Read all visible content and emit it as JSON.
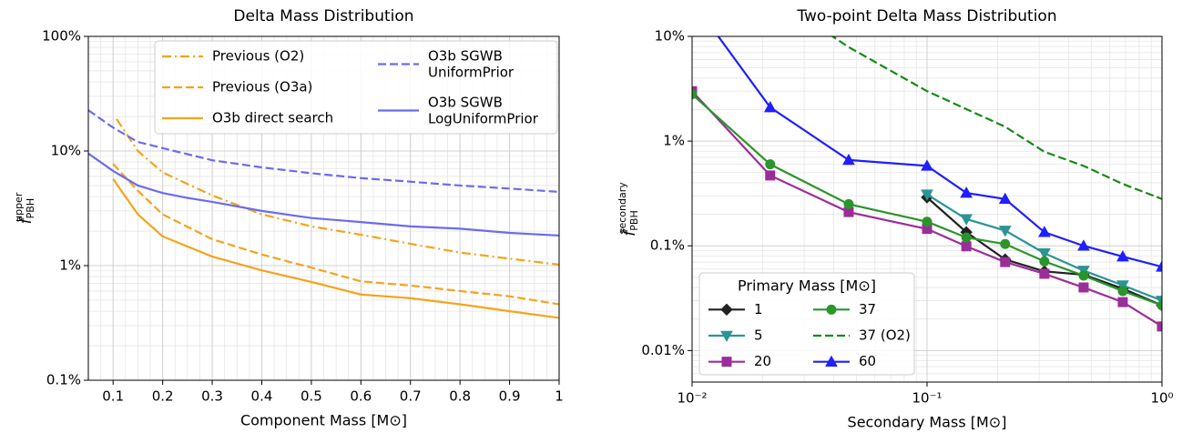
{
  "chart_data": [
    {
      "type": "line",
      "title": "Delta Mass Distribution",
      "x_label": "Component Mass [M⊙]",
      "y_label": {
        "symbol": "f̃",
        "sub": "PBH",
        "sup": "upper"
      },
      "xlim": [
        0.05,
        1.0
      ],
      "xticks": [
        0.1,
        0.2,
        0.3,
        0.4,
        0.5,
        0.6,
        0.7,
        0.8,
        0.9,
        1.0
      ],
      "xlog": false,
      "ylim": [
        0.1,
        100
      ],
      "yticks": [
        {
          "value": 0.1,
          "label": "0.1%"
        },
        {
          "value": 1,
          "label": "1%"
        },
        {
          "value": 10,
          "label": "10%"
        },
        {
          "value": 100,
          "label": "100%"
        }
      ],
      "ylog": true,
      "grid": true,
      "legend": "upper right",
      "series": [
        {
          "name": "Previous (O2)",
          "color": "#f5a31a",
          "linestyle": "dashdot",
          "x": [
            0.107,
            0.15,
            0.2,
            0.3,
            0.4,
            0.5,
            0.6,
            0.7,
            0.8,
            0.9,
            1.0
          ],
          "values": [
            19,
            10,
            6.5,
            4.1,
            2.8,
            2.2,
            1.86,
            1.55,
            1.3,
            1.15,
            1.02
          ]
        },
        {
          "name": "Previous (O3a)",
          "color": "#f5a31a",
          "linestyle": "dashed",
          "x": [
            0.1,
            0.15,
            0.2,
            0.3,
            0.4,
            0.5,
            0.6,
            0.7,
            0.8,
            0.9,
            1.0
          ],
          "values": [
            7.7,
            4.5,
            2.8,
            1.7,
            1.25,
            0.96,
            0.73,
            0.67,
            0.6,
            0.54,
            0.46
          ]
        },
        {
          "name": "O3b direct search",
          "color": "#f5a31a",
          "linestyle": "solid",
          "x": [
            0.1,
            0.15,
            0.2,
            0.3,
            0.4,
            0.5,
            0.6,
            0.7,
            0.8,
            0.9,
            1.0
          ],
          "values": [
            5.7,
            2.8,
            1.8,
            1.2,
            0.91,
            0.72,
            0.56,
            0.52,
            0.46,
            0.4,
            0.35
          ]
        },
        {
          "name": "O3b SGWB\nUniformPrior",
          "color": "#6b6bef",
          "linestyle": "dashed",
          "x": [
            0.05,
            0.1,
            0.15,
            0.2,
            0.3,
            0.4,
            0.5,
            0.6,
            0.7,
            0.8,
            0.9,
            1.0
          ],
          "values": [
            22.7,
            16,
            12,
            10.6,
            8.3,
            7.2,
            6.4,
            5.8,
            5.4,
            5.0,
            4.7,
            4.4
          ]
        },
        {
          "name": "O3b SGWB\nLogUniformPrior",
          "color": "#6b6bef",
          "linestyle": "solid",
          "x": [
            0.05,
            0.1,
            0.15,
            0.2,
            0.25,
            0.3,
            0.4,
            0.5,
            0.6,
            0.7,
            0.8,
            0.9,
            1.0
          ],
          "values": [
            9.5,
            6.7,
            5.0,
            4.3,
            3.9,
            3.6,
            3.0,
            2.6,
            2.4,
            2.2,
            2.1,
            1.93,
            1.83
          ]
        }
      ]
    },
    {
      "type": "line",
      "title": "Two-point Delta Mass Distribution",
      "x_label": "Secondary Mass [M⊙]",
      "y_label": {
        "symbol": "f̃",
        "sub": "PBH",
        "sup": "secondary"
      },
      "xlim": [
        0.01,
        1
      ],
      "xticks": [
        {
          "value": 0.01,
          "label": "10⁻²"
        },
        {
          "value": 0.1,
          "label": "10⁻¹"
        },
        {
          "value": 1,
          "label": "10⁰"
        }
      ],
      "xlog": true,
      "ylim": [
        0.005,
        10
      ],
      "yticks": [
        {
          "value": 0.01,
          "label": "0.01%"
        },
        {
          "value": 0.1,
          "label": "0.1%"
        },
        {
          "value": 1,
          "label": "1%"
        },
        {
          "value": 10,
          "label": "10%"
        }
      ],
      "ylog": true,
      "grid": true,
      "legend": "lower left",
      "legend_title": "Primary Mass [M⊙]",
      "series": [
        {
          "name": "1",
          "color": "#222222",
          "linestyle": "solid",
          "marker": "diamond",
          "x": [
            0.1,
            0.147,
            0.215,
            0.316,
            0.464,
            0.681,
            1.0
          ],
          "values": [
            0.29,
            0.135,
            0.074,
            0.057,
            0.053,
            0.039,
            0.027
          ]
        },
        {
          "name": "5",
          "color": "#2a9595",
          "linestyle": "solid",
          "marker": "triangle-down",
          "x": [
            0.1,
            0.147,
            0.215,
            0.316,
            0.464,
            0.681,
            1.0
          ],
          "values": [
            0.31,
            0.18,
            0.14,
            0.085,
            0.058,
            0.042,
            0.03
          ]
        },
        {
          "name": "20",
          "color": "#9b2d9b",
          "linestyle": "solid",
          "marker": "square",
          "x": [
            0.01,
            0.0215,
            0.0464,
            0.1,
            0.147,
            0.215,
            0.316,
            0.464,
            0.681,
            1.0
          ],
          "values": [
            3.0,
            0.47,
            0.21,
            0.145,
            0.099,
            0.07,
            0.054,
            0.04,
            0.029,
            0.017
          ]
        },
        {
          "name": "37",
          "color": "#2a952a",
          "linestyle": "solid",
          "marker": "circle",
          "x": [
            0.01,
            0.0215,
            0.0464,
            0.1,
            0.147,
            0.215,
            0.316,
            0.464,
            0.681,
            1.0
          ],
          "values": [
            2.8,
            0.6,
            0.25,
            0.17,
            0.12,
            0.104,
            0.071,
            0.052,
            0.037,
            0.027
          ]
        },
        {
          "name": "37 (O2)",
          "color": "#168a16",
          "linestyle": "dashed",
          "x": [
            0.0215,
            0.0464,
            0.1,
            0.215,
            0.316,
            0.464,
            0.681,
            1.0
          ],
          "values": [
            25,
            7.9,
            3.0,
            1.37,
            0.79,
            0.58,
            0.39,
            0.28
          ]
        },
        {
          "name": "60",
          "color": "#1f1fff",
          "linestyle": "solid",
          "marker": "triangle-up",
          "x": [
            0.01,
            0.0215,
            0.0464,
            0.1,
            0.147,
            0.215,
            0.316,
            0.464,
            0.681,
            1.0
          ],
          "values": [
            22,
            2.1,
            0.66,
            0.58,
            0.32,
            0.28,
            0.135,
            0.1,
            0.079,
            0.063
          ]
        }
      ]
    }
  ]
}
